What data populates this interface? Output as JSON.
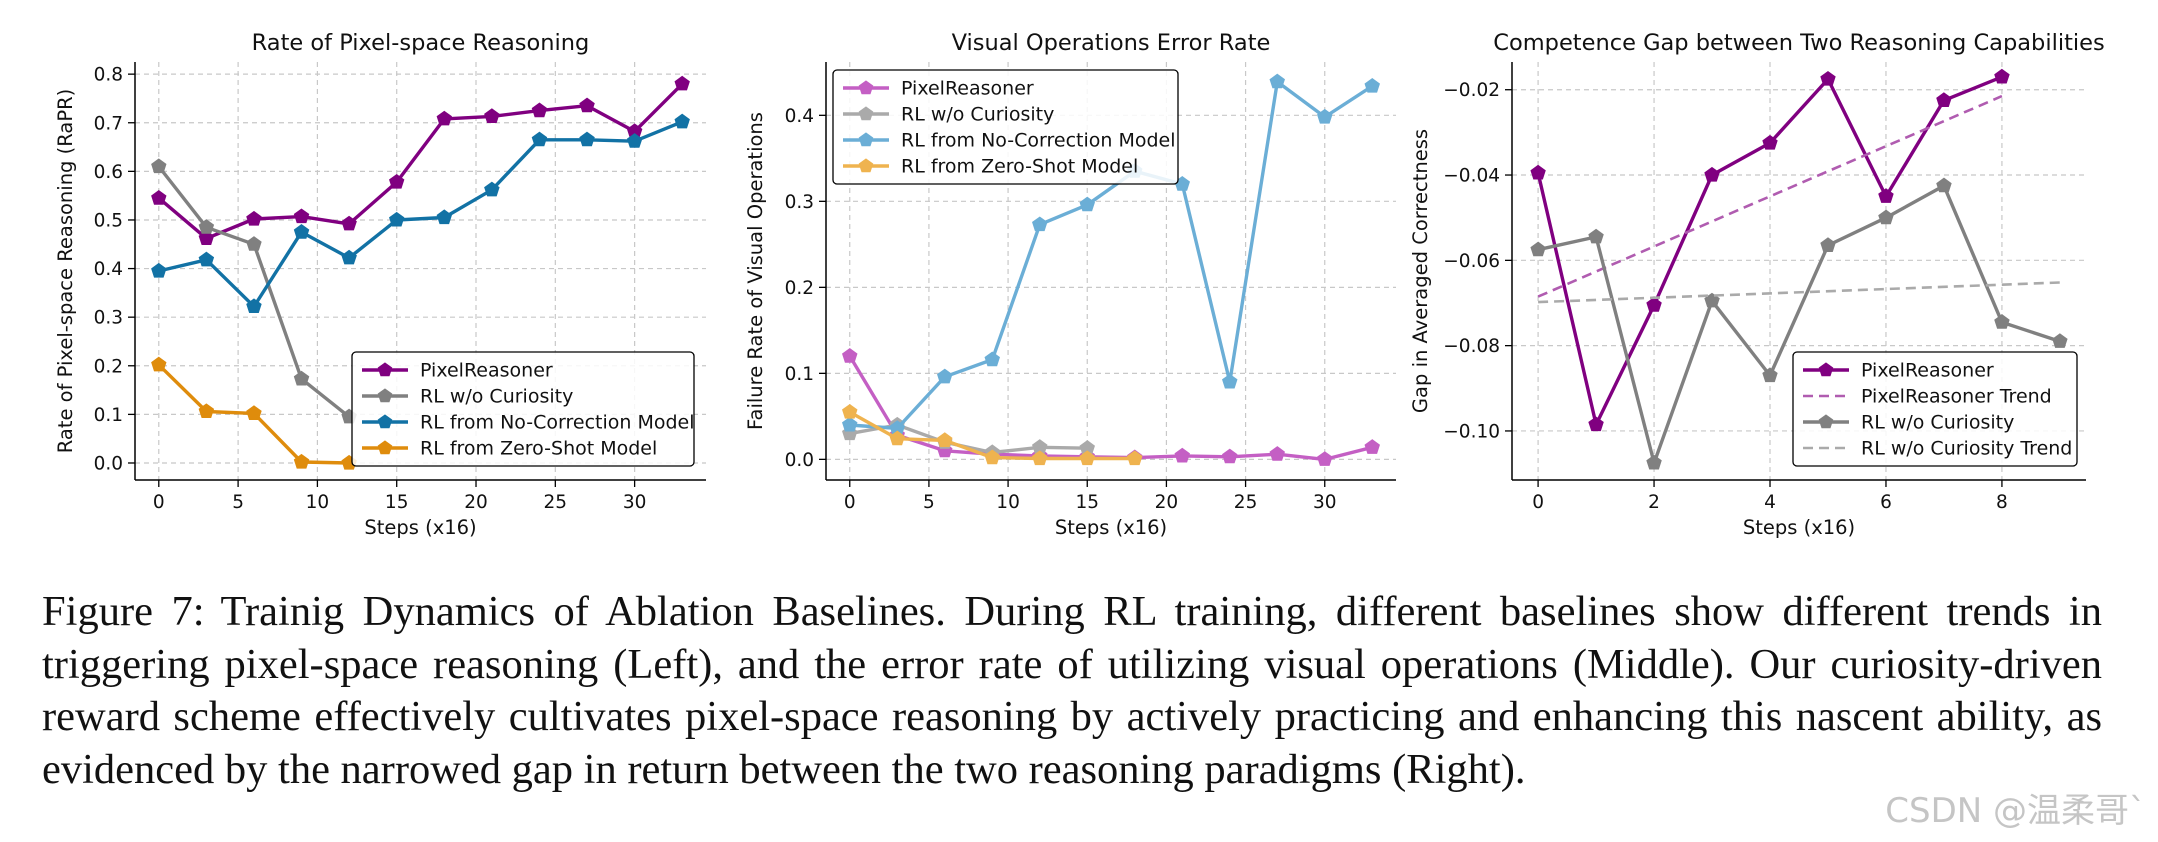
{
  "chart_data": [
    {
      "type": "line",
      "title": "Rate of Pixel-space Reasoning",
      "xlabel": "Steps (x16)",
      "ylabel": "Rate of Pixel-space Reasoning (RaPR)",
      "xlim": [
        -1.5,
        34.5
      ],
      "ylim": [
        -0.035,
        0.825
      ],
      "xticks": [
        0,
        5,
        10,
        15,
        20,
        25,
        30
      ],
      "yticks": [
        0.0,
        0.1,
        0.2,
        0.3,
        0.4,
        0.5,
        0.6,
        0.7,
        0.8
      ],
      "ytick_labels": [
        "0.0",
        "0.1",
        "0.2",
        "0.3",
        "0.4",
        "0.5",
        "0.6",
        "0.7",
        "0.8"
      ],
      "grid": true,
      "legend": "lower-right",
      "series": [
        {
          "name": "PixelReasoner",
          "color": "#800080",
          "marker": "pentagon",
          "x": [
            0,
            3,
            6,
            9,
            12,
            15,
            18,
            21,
            24,
            27,
            30,
            33
          ],
          "values": [
            0.545,
            0.462,
            0.502,
            0.507,
            0.492,
            0.578,
            0.708,
            0.713,
            0.725,
            0.735,
            0.682,
            0.78
          ]
        },
        {
          "name": "RL w/o Curiosity",
          "color": "#808080",
          "marker": "pentagon",
          "x": [
            0,
            3,
            6,
            9,
            12
          ],
          "values": [
            0.61,
            0.485,
            0.45,
            0.173,
            0.095
          ]
        },
        {
          "name": "RL from No-Correction Model",
          "color": "#1272a5",
          "marker": "pentagon",
          "x": [
            0,
            3,
            6,
            9,
            12,
            15,
            18,
            21,
            24,
            27,
            30,
            33
          ],
          "values": [
            0.395,
            0.418,
            0.322,
            0.475,
            0.422,
            0.5,
            0.505,
            0.562,
            0.665,
            0.665,
            0.662,
            0.702
          ]
        },
        {
          "name": "RL from Zero-Shot Model",
          "color": "#df8c0c",
          "marker": "pentagon",
          "x": [
            0,
            3,
            6,
            9,
            12
          ],
          "values": [
            0.202,
            0.106,
            0.102,
            0.002,
            0.0
          ]
        }
      ]
    },
    {
      "type": "line",
      "title": "Visual Operations Error Rate",
      "xlabel": "Steps (x16)",
      "ylabel": "Failure Rate of Visual Operations",
      "xlim": [
        -1.5,
        34.5
      ],
      "ylim": [
        -0.024,
        0.462
      ],
      "xticks": [
        0,
        5,
        10,
        15,
        20,
        25,
        30
      ],
      "yticks": [
        0.0,
        0.1,
        0.2,
        0.3,
        0.4
      ],
      "ytick_labels": [
        "0.0",
        "0.1",
        "0.2",
        "0.3",
        "0.4"
      ],
      "grid": true,
      "legend": "upper-left",
      "series": [
        {
          "name": "PixelReasoner",
          "color": "#c45fc4",
          "marker": "pentagon",
          "x": [
            0,
            3,
            6,
            9,
            12,
            15,
            18,
            21,
            24,
            27,
            30,
            33
          ],
          "values": [
            0.12,
            0.028,
            0.01,
            0.006,
            0.004,
            0.003,
            0.002,
            0.004,
            0.003,
            0.006,
            0.0,
            0.014
          ]
        },
        {
          "name": "RL w/o Curiosity",
          "color": "#aaaaaa",
          "marker": "pentagon",
          "x": [
            0,
            3,
            6,
            9,
            12,
            15
          ],
          "values": [
            0.03,
            0.04,
            0.02,
            0.008,
            0.014,
            0.013
          ]
        },
        {
          "name": "RL from No-Correction Model",
          "color": "#6baed6",
          "marker": "pentagon",
          "x": [
            0,
            3,
            6,
            9,
            12,
            15,
            18,
            21,
            24,
            27,
            30,
            33
          ],
          "values": [
            0.04,
            0.036,
            0.096,
            0.116,
            0.273,
            0.296,
            0.335,
            0.32,
            0.09,
            0.439,
            0.398,
            0.434
          ]
        },
        {
          "name": "RL from Zero-Shot Model",
          "color": "#efb34f",
          "marker": "pentagon",
          "x": [
            0,
            3,
            6,
            9,
            12,
            15,
            18
          ],
          "values": [
            0.055,
            0.024,
            0.022,
            0.002,
            0.001,
            0.001,
            0.001
          ]
        }
      ]
    },
    {
      "type": "line",
      "title": "Competence Gap between Two Reasoning Capabilities",
      "xlabel": "Steps (x16)",
      "ylabel": "Gap in Averaged Correctness",
      "xlim": [
        -0.45,
        9.45
      ],
      "ylim": [
        -0.1115,
        -0.0135
      ],
      "xticks": [
        0,
        2,
        4,
        6,
        8
      ],
      "yticks": [
        -0.1,
        -0.08,
        -0.06,
        -0.04,
        -0.02
      ],
      "ytick_labels": [
        "−0.10",
        "−0.08",
        "−0.06",
        "−0.04",
        "−0.02"
      ],
      "grid": true,
      "legend": "lower-right",
      "series": [
        {
          "name": "PixelReasoner",
          "color": "#800080",
          "marker": "pentagon",
          "x": [
            0,
            1,
            2,
            3,
            4,
            5,
            6,
            7,
            8
          ],
          "values": [
            -0.0395,
            -0.0985,
            -0.0705,
            -0.04,
            -0.0325,
            -0.0175,
            -0.045,
            -0.0225,
            -0.017
          ]
        },
        {
          "name": "PixelReasoner Trend",
          "color": "#b05cb0",
          "style": "dashed",
          "x": [
            0,
            8
          ],
          "values": [
            -0.0685,
            -0.0215
          ]
        },
        {
          "name": "RL w/o Curiosity",
          "color": "#808080",
          "marker": "pentagon",
          "x": [
            0,
            1,
            2,
            3,
            4,
            5,
            6,
            7,
            8,
            9
          ],
          "values": [
            -0.0575,
            -0.0545,
            -0.1075,
            -0.0695,
            -0.087,
            -0.0565,
            -0.05,
            -0.0425,
            -0.0745,
            -0.079
          ]
        },
        {
          "name": "RL w/o Curiosity Trend",
          "color": "#aaaaaa",
          "style": "dashed",
          "x": [
            0,
            9
          ],
          "values": [
            -0.0698,
            -0.0652
          ]
        }
      ]
    }
  ],
  "caption": {
    "label": "Figure 7:",
    "text": "Trainig Dynamics of Ablation Baselines. During RL training, different baselines show different trends in triggering pixel-space reasoning (Left), and the error rate of utilizing visual operations (Middle). Our curiosity-driven reward scheme effectively cultivates pixel-space reasoning by actively practicing and enhancing this nascent ability, as evidenced by the narrowed gap in return between the two reasoning paradigms (Right)."
  },
  "watermark": "CSDN @温柔哥ˋ"
}
